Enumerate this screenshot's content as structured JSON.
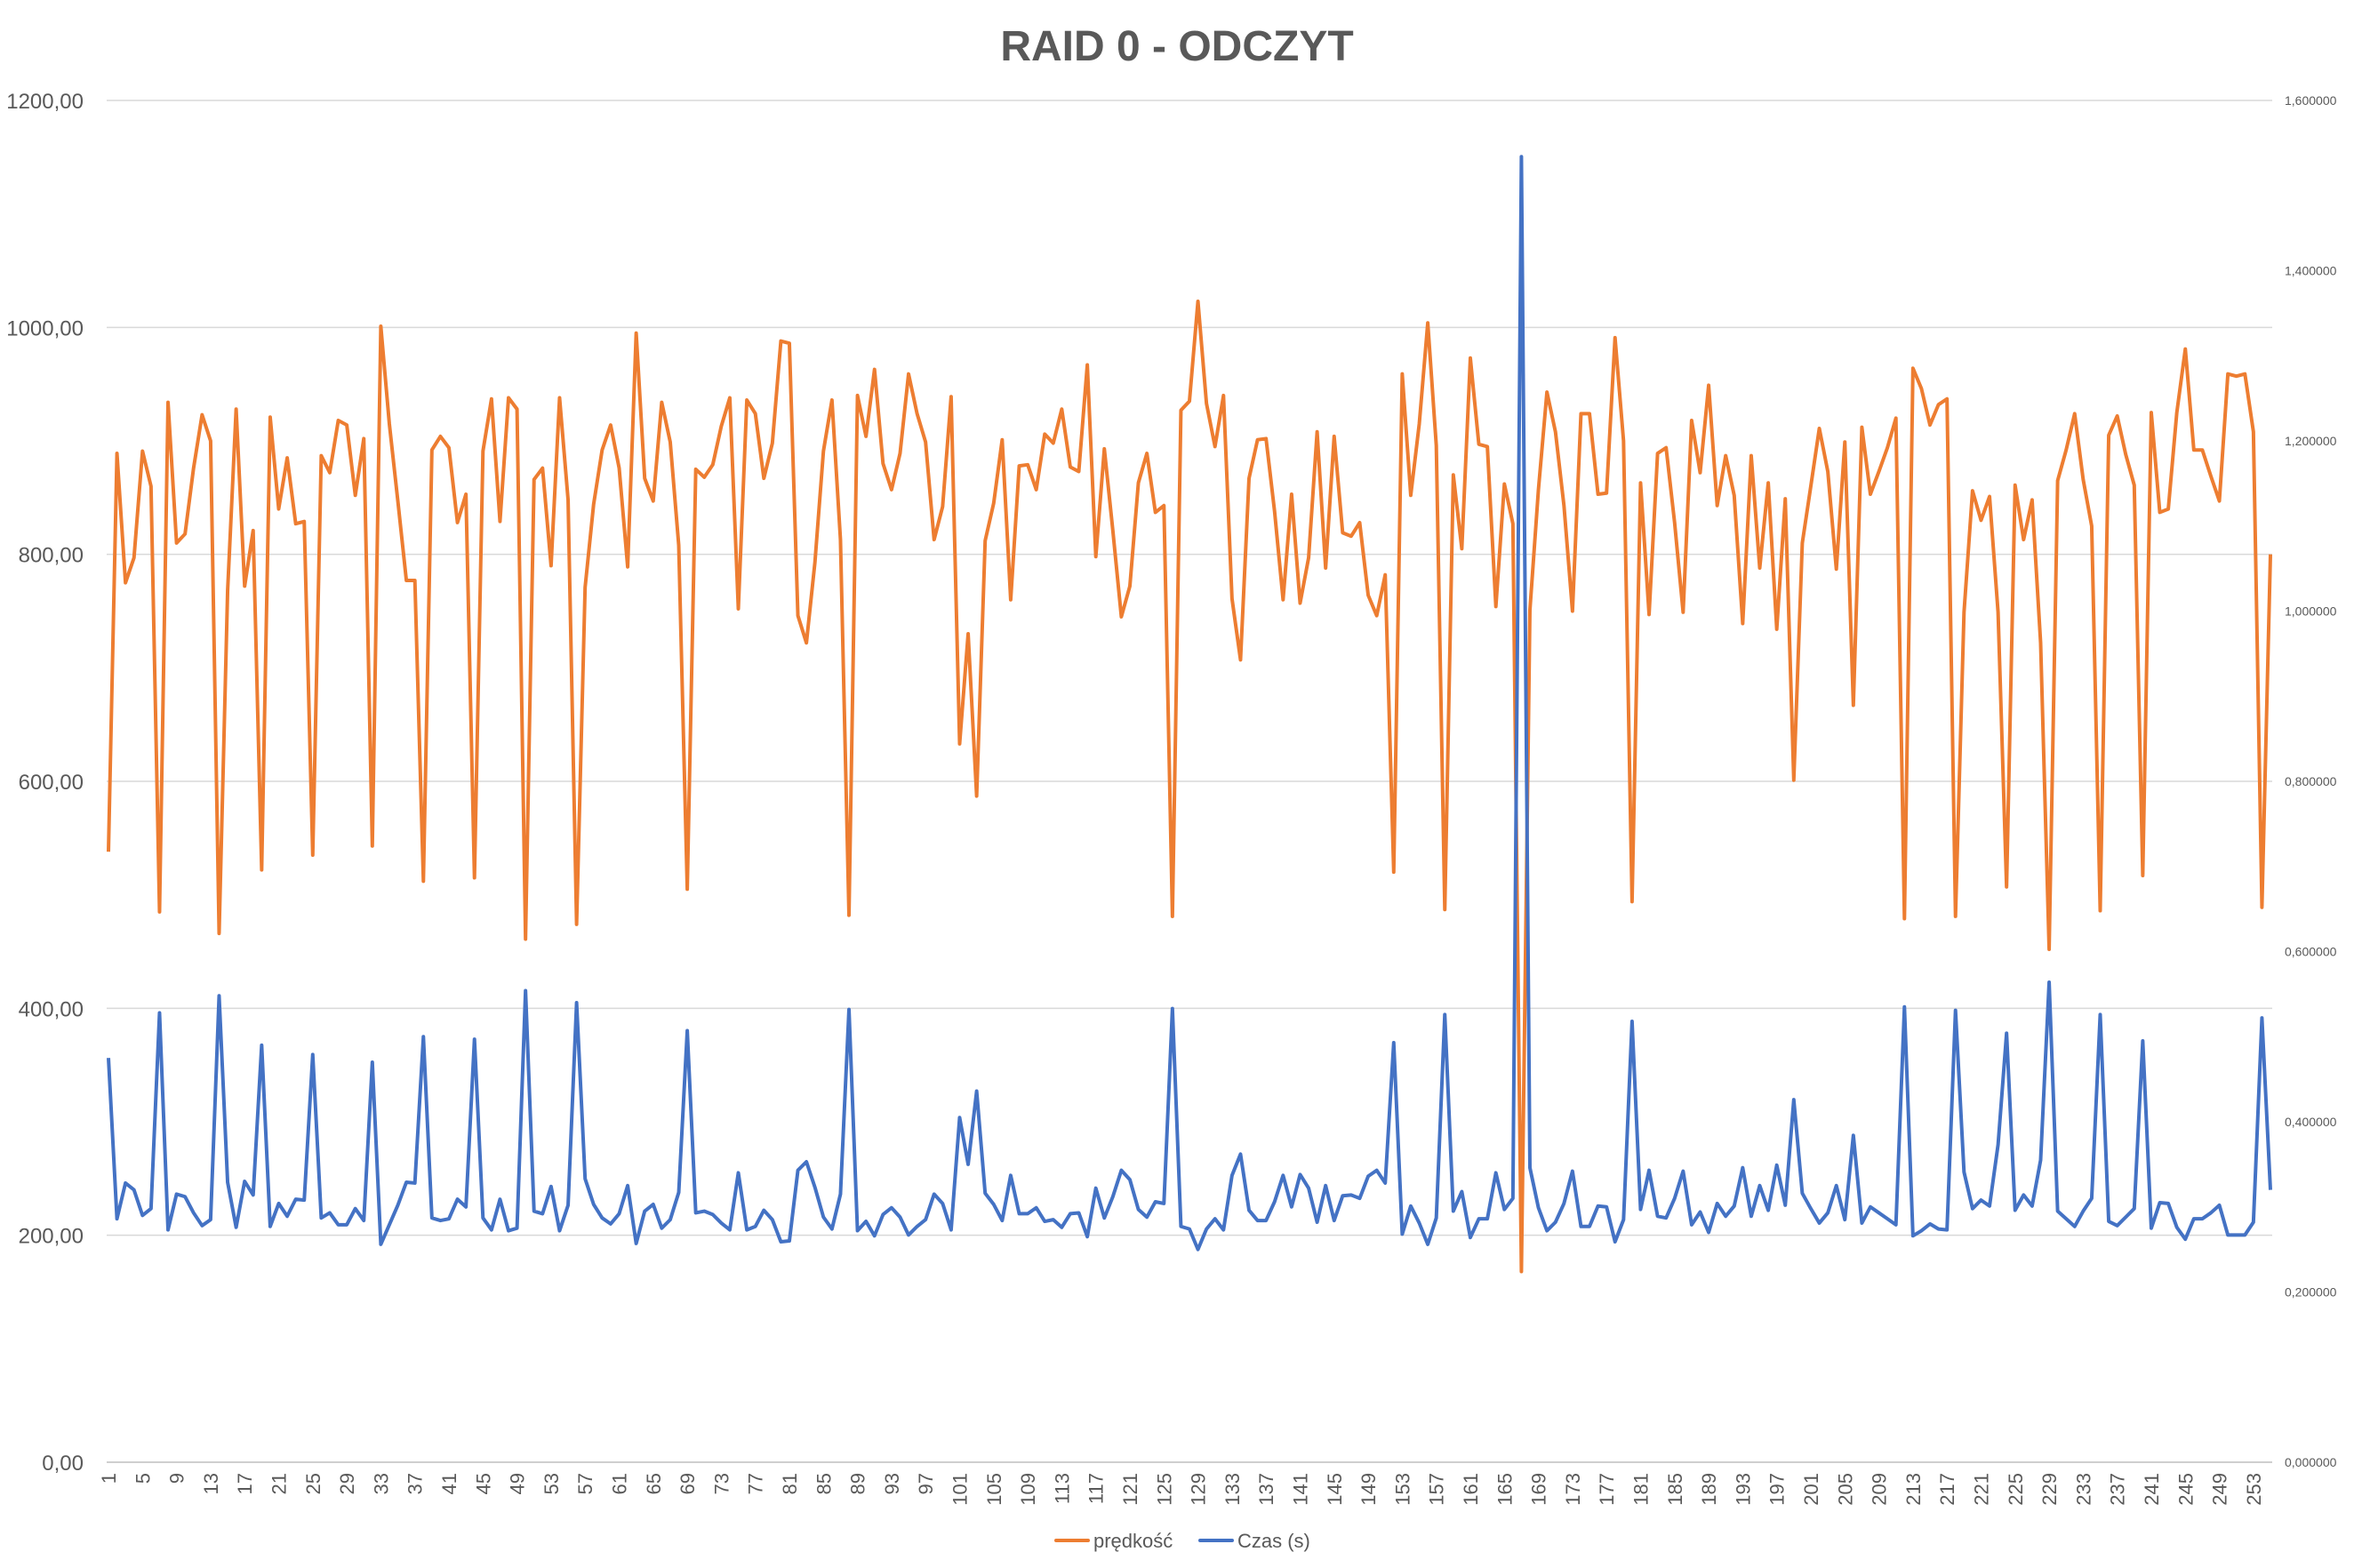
{
  "chart_data": {
    "type": "line",
    "title": "RAID 0 - ODCZYT",
    "xlabel": "",
    "ylabel": "",
    "y2label": "",
    "x_range": [
      1,
      255
    ],
    "x_tick_step": 4,
    "y_left_range": [
      0,
      1200
    ],
    "y_left_ticks": [
      "0,00",
      "200,00",
      "400,00",
      "600,00",
      "800,00",
      "1000,00",
      "1200,00"
    ],
    "y_right_range": [
      0,
      1.6
    ],
    "y_right_ticks": [
      "0,000000",
      "0,200000",
      "0,400000",
      "0,600000",
      "0,800000",
      "1,000000",
      "1,200000",
      "1,400000",
      "1,600000"
    ],
    "grid": true,
    "legend_position": "bottom",
    "colors": {
      "speed": "#ED7D31",
      "time": "#4472C4",
      "grid": "#D9D9D9",
      "axis": "#BFBFBF",
      "text": "#595959"
    },
    "series": [
      {
        "name": "prędkość",
        "axis": "left",
        "values": [
          538,
          889,
          775,
          797,
          891,
          860,
          485,
          934,
          810,
          818,
          876,
          923,
          900,
          466,
          768,
          928,
          772,
          821,
          522,
          921,
          840,
          885,
          827,
          829,
          535,
          887,
          872,
          918,
          914,
          852,
          902,
          543,
          1001,
          915,
          847,
          777,
          777,
          512,
          892,
          904,
          894,
          828,
          853,
          515,
          891,
          937,
          829,
          938,
          928,
          461,
          866,
          876,
          790,
          938,
          848,
          474,
          771,
          844,
          892,
          914,
          876,
          789,
          995,
          867,
          847,
          934,
          899,
          808,
          505,
          875,
          868,
          879,
          913,
          938,
          752,
          936,
          924,
          867,
          898,
          988,
          986,
          746,
          722,
          793,
          891,
          936,
          813,
          482,
          940,
          904,
          963,
          880,
          857,
          889,
          959,
          924,
          899,
          813,
          842,
          939,
          633,
          730,
          587,
          812,
          845,
          901,
          760,
          878,
          879,
          857,
          906,
          898,
          928,
          877,
          873,
          967,
          798,
          893,
          821,
          745,
          772,
          863,
          889,
          837,
          843,
          481,
          927,
          935,
          1023,
          933,
          895,
          940,
          761,
          707,
          867,
          901,
          902,
          838,
          760,
          853,
          757,
          797,
          908,
          788,
          904,
          819,
          816,
          828,
          764,
          746,
          782,
          520,
          959,
          852,
          915,
          1004,
          896,
          487,
          870,
          805,
          973,
          897,
          895,
          754,
          862,
          827,
          168,
          751,
          857,
          943,
          908,
          843,
          750,
          924,
          924,
          853,
          854,
          991,
          900,
          494,
          863,
          747,
          889,
          894,
          828,
          749,
          918,
          872,
          949,
          843,
          887,
          852,
          739,
          887,
          788,
          863,
          734,
          849,
          601,
          810,
          860,
          911,
          873,
          787,
          899,
          667,
          912,
          853,
          873,
          894,
          920,
          479,
          964,
          946,
          914,
          932,
          937,
          481,
          749,
          856,
          830,
          851,
          749,
          507,
          861,
          813,
          848,
          722,
          452,
          865,
          892,
          924,
          866,
          825,
          486,
          905,
          922,
          888,
          861,
          517,
          925,
          837,
          840,
          925,
          981,
          892,
          892,
          869,
          847,
          959,
          957,
          959,
          908,
          489,
          800
        ]
      },
      {
        "name": "Czas (s)",
        "axis": "right",
        "values": [
          0.475,
          0.286,
          0.328,
          0.32,
          0.29,
          0.298,
          0.528,
          0.273,
          0.315,
          0.312,
          0.293,
          0.278,
          0.285,
          0.548,
          0.329,
          0.276,
          0.33,
          0.314,
          0.49,
          0.277,
          0.304,
          0.289,
          0.309,
          0.308,
          0.479,
          0.287,
          0.293,
          0.279,
          0.279,
          0.298,
          0.284,
          0.47,
          0.256,
          0.279,
          0.302,
          0.329,
          0.328,
          0.5,
          0.287,
          0.284,
          0.286,
          0.309,
          0.3,
          0.497,
          0.287,
          0.273,
          0.309,
          0.272,
          0.275,
          0.554,
          0.295,
          0.292,
          0.324,
          0.272,
          0.302,
          0.54,
          0.333,
          0.303,
          0.287,
          0.28,
          0.292,
          0.325,
          0.257,
          0.295,
          0.303,
          0.275,
          0.285,
          0.317,
          0.507,
          0.293,
          0.295,
          0.291,
          0.281,
          0.273,
          0.34,
          0.273,
          0.277,
          0.296,
          0.285,
          0.259,
          0.26,
          0.343,
          0.353,
          0.323,
          0.288,
          0.274,
          0.315,
          0.532,
          0.272,
          0.283,
          0.266,
          0.291,
          0.299,
          0.288,
          0.267,
          0.277,
          0.285,
          0.315,
          0.304,
          0.273,
          0.405,
          0.35,
          0.436,
          0.316,
          0.303,
          0.284,
          0.337,
          0.292,
          0.292,
          0.299,
          0.283,
          0.285,
          0.276,
          0.292,
          0.293,
          0.265,
          0.322,
          0.287,
          0.312,
          0.343,
          0.332,
          0.297,
          0.288,
          0.306,
          0.304,
          0.533,
          0.277,
          0.274,
          0.25,
          0.274,
          0.286,
          0.273,
          0.337,
          0.362,
          0.296,
          0.284,
          0.284,
          0.306,
          0.337,
          0.3,
          0.338,
          0.322,
          0.282,
          0.325,
          0.284,
          0.313,
          0.314,
          0.31,
          0.336,
          0.343,
          0.328,
          0.493,
          0.268,
          0.301,
          0.281,
          0.256,
          0.287,
          0.526,
          0.295,
          0.318,
          0.264,
          0.286,
          0.286,
          0.34,
          0.297,
          0.31,
          1.534,
          0.346,
          0.299,
          0.272,
          0.282,
          0.304,
          0.342,
          0.277,
          0.277,
          0.301,
          0.3,
          0.259,
          0.285,
          0.518,
          0.297,
          0.343,
          0.289,
          0.287,
          0.31,
          0.342,
          0.279,
          0.294,
          0.27,
          0.304,
          0.289,
          0.301,
          0.346,
          0.289,
          0.325,
          0.296,
          0.349,
          0.302,
          0.426,
          0.316,
          0.298,
          0.281,
          0.293,
          0.325,
          0.285,
          0.384,
          0.281,
          0.3,
          0.293,
          0.286,
          0.279,
          0.535,
          0.266,
          0.272,
          0.28,
          0.274,
          0.273,
          0.531,
          0.341,
          0.298,
          0.308,
          0.301,
          0.373,
          0.504,
          0.296,
          0.314,
          0.301,
          0.355,
          0.564,
          0.295,
          0.286,
          0.277,
          0.295,
          0.31,
          0.526,
          0.283,
          0.278,
          0.288,
          0.298,
          0.495,
          0.275,
          0.305,
          0.304,
          0.276,
          0.262,
          0.286,
          0.286,
          0.293,
          0.302,
          0.267,
          0.267,
          0.267,
          0.282,
          0.522,
          0.32
        ]
      }
    ]
  }
}
